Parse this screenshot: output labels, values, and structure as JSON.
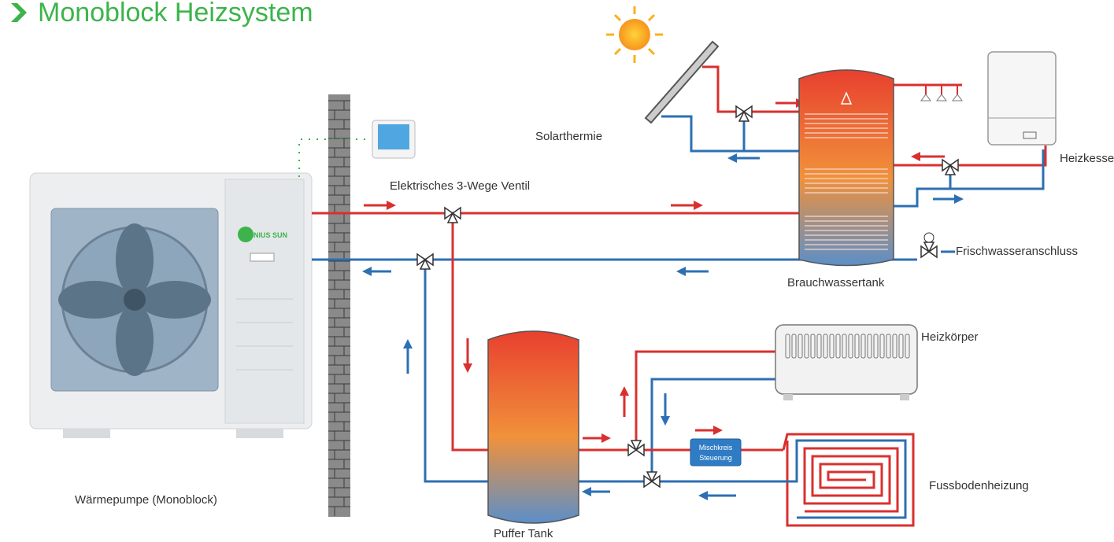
{
  "header": {
    "title": "Monoblock Heizsystem"
  },
  "labels": {
    "solar": "Solarthermie",
    "boiler": "Heizkessel",
    "valve": "Elektrisches 3-Wege Ventil",
    "hot_water_tank": "Brauchwassertank",
    "fresh_water": "Frischwasseranschluss",
    "radiator": "Heizkörper",
    "buffer_tank": "Puffer Tank",
    "floor_heating": "Fussbodenheizung",
    "heat_pump": "Wärmepumpe (Monoblock)"
  },
  "mixer": {
    "line1": "Mischkreis",
    "line2": "Steuerung"
  },
  "brand": "NIUS SUN"
}
